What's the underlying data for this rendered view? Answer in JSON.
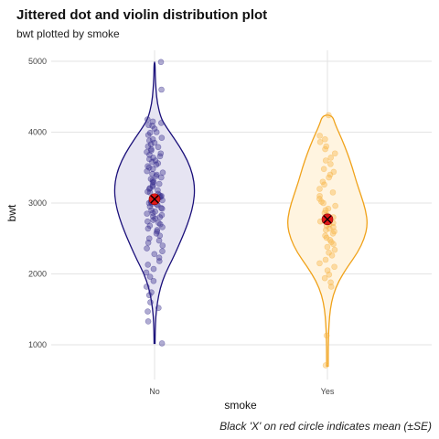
{
  "chart_data": {
    "type": "violin",
    "title": "Jittered dot and violin distribution plot",
    "subtitle": "bwt plotted by smoke",
    "xlabel": "smoke",
    "ylabel": "bwt",
    "caption": "Black 'X' on red circle indicates mean (±SE)",
    "categories": [
      "No",
      "Yes"
    ],
    "ylim": [
      800,
      5200
    ],
    "yticks": [
      1000,
      2000,
      3000,
      4000,
      5000
    ],
    "grid": true,
    "legend": "none",
    "series": [
      {
        "category": "No",
        "color": "#1a0f7a",
        "fill": "#e6e4f2",
        "point_color": "#3a2f8f",
        "mean": 3055,
        "se": 55,
        "range": [
          1020,
          4990
        ],
        "density": [
          [
            1020,
            0.012
          ],
          [
            1200,
            0.016
          ],
          [
            1400,
            0.03
          ],
          [
            1600,
            0.07
          ],
          [
            1800,
            0.14
          ],
          [
            2000,
            0.26
          ],
          [
            2200,
            0.44
          ],
          [
            2400,
            0.6
          ],
          [
            2600,
            0.75
          ],
          [
            2800,
            0.88
          ],
          [
            3000,
            0.97
          ],
          [
            3200,
            1.0
          ],
          [
            3400,
            0.95
          ],
          [
            3600,
            0.82
          ],
          [
            3800,
            0.62
          ],
          [
            4000,
            0.38
          ],
          [
            4100,
            0.26
          ],
          [
            4200,
            0.16
          ],
          [
            4400,
            0.07
          ],
          [
            4600,
            0.035
          ],
          [
            4800,
            0.016
          ],
          [
            4990,
            0.012
          ]
        ],
        "points": [
          4990,
          4600,
          4180,
          4150,
          4130,
          4100,
          4090,
          4050,
          4000,
          3990,
          3960,
          3920,
          3900,
          3880,
          3850,
          3830,
          3800,
          3790,
          3760,
          3740,
          3720,
          3700,
          3680,
          3660,
          3640,
          3620,
          3600,
          3580,
          3560,
          3540,
          3520,
          3500,
          3480,
          3450,
          3430,
          3410,
          3400,
          3380,
          3360,
          3340,
          3320,
          3300,
          3290,
          3270,
          3250,
          3230,
          3210,
          3200,
          3180,
          3160,
          3150,
          3130,
          3110,
          3100,
          3090,
          3080,
          3070,
          3060,
          3050,
          3040,
          3020,
          3010,
          3000,
          2990,
          2980,
          2970,
          2950,
          2930,
          2920,
          2900,
          2880,
          2860,
          2850,
          2830,
          2810,
          2800,
          2780,
          2760,
          2740,
          2720,
          2700,
          2680,
          2660,
          2640,
          2620,
          2600,
          2570,
          2540,
          2500,
          2470,
          2440,
          2400,
          2360,
          2320,
          2280,
          2230,
          2180,
          2130,
          2070,
          2020,
          1960,
          1900,
          1820,
          1740,
          1700,
          1600,
          1520,
          1470,
          1330,
          1020
        ]
      },
      {
        "category": "Yes",
        "color": "#f0a21a",
        "fill": "#fff4e0",
        "point_color": "#f7b444",
        "mean": 2770,
        "se": 60,
        "range": [
          700,
          4240
        ],
        "density": [
          [
            700,
            0.02
          ],
          [
            900,
            0.02
          ],
          [
            1100,
            0.025
          ],
          [
            1300,
            0.04
          ],
          [
            1500,
            0.07
          ],
          [
            1700,
            0.14
          ],
          [
            1900,
            0.28
          ],
          [
            2100,
            0.5
          ],
          [
            2300,
            0.75
          ],
          [
            2500,
            0.92
          ],
          [
            2700,
            1.0
          ],
          [
            2900,
            0.95
          ],
          [
            3100,
            0.84
          ],
          [
            3300,
            0.72
          ],
          [
            3500,
            0.62
          ],
          [
            3700,
            0.5
          ],
          [
            3900,
            0.36
          ],
          [
            4100,
            0.2
          ],
          [
            4240,
            0.12
          ]
        ],
        "points": [
          4240,
          3950,
          3900,
          3860,
          3800,
          3760,
          3700,
          3640,
          3600,
          3550,
          3480,
          3440,
          3400,
          3360,
          3300,
          3260,
          3200,
          3150,
          3100,
          3060,
          3020,
          3000,
          2960,
          2920,
          2900,
          2860,
          2830,
          2800,
          2780,
          2760,
          2740,
          2720,
          2700,
          2680,
          2660,
          2640,
          2620,
          2600,
          2570,
          2540,
          2510,
          2480,
          2450,
          2420,
          2380,
          2340,
          2300,
          2260,
          2200,
          2150,
          2100,
          2050,
          1990,
          1940,
          1880,
          1820,
          1130,
          710
        ]
      }
    ]
  }
}
